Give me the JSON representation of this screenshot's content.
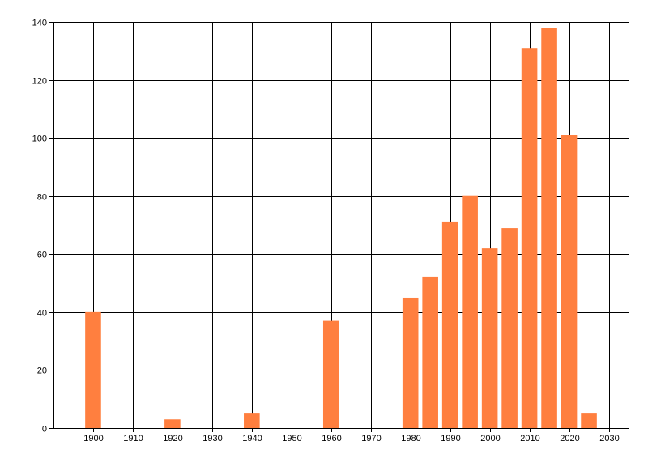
{
  "chart_data": {
    "type": "bar",
    "x": [
      1900,
      1920,
      1940,
      1960,
      1980,
      1985,
      1990,
      1995,
      2000,
      2005,
      2010,
      2015,
      2020,
      2025
    ],
    "values": [
      40,
      3,
      5,
      37,
      45,
      52,
      71,
      80,
      62,
      69,
      131,
      138,
      101,
      5
    ],
    "title": "",
    "xlabel": "",
    "ylabel": "",
    "xlim": [
      1890,
      2035
    ],
    "ylim": [
      0,
      140
    ],
    "x_ticks": [
      1900,
      1910,
      1920,
      1930,
      1940,
      1950,
      1960,
      1970,
      1980,
      1990,
      2000,
      2010,
      2020,
      2030
    ],
    "y_ticks": [
      0,
      20,
      40,
      60,
      80,
      100,
      120,
      140
    ],
    "bar_width_years": 4,
    "grid": true,
    "legend": "none",
    "colors": {
      "bar": "#ff7f3f",
      "grid": "#000000",
      "axis": "#000000"
    }
  }
}
